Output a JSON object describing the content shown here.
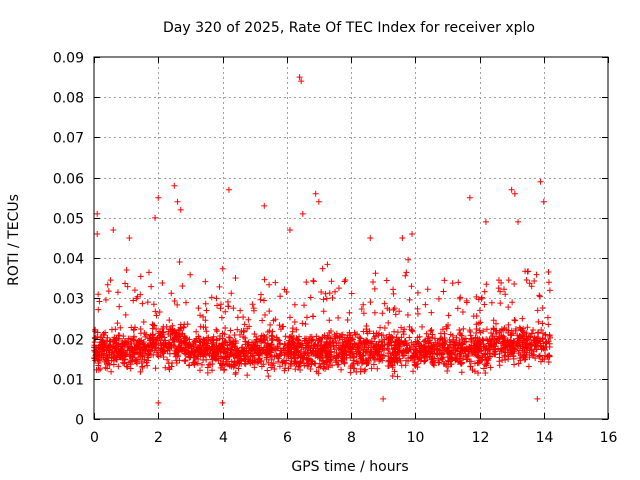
{
  "chart_data": {
    "type": "scatter",
    "title": "Day 320 of 2025, Rate Of TEC Index for receiver xplo",
    "xlabel": "GPS time / hours",
    "ylabel": "ROTI / TECUs",
    "xlim": [
      0,
      16
    ],
    "ylim": [
      0,
      0.09
    ],
    "xticks": [
      0,
      2,
      4,
      6,
      8,
      10,
      12,
      14,
      16
    ],
    "xtick_labels": [
      "0",
      "2",
      "4",
      "6",
      "8",
      "10",
      "12",
      "14",
      "16"
    ],
    "yticks": [
      0,
      0.01,
      0.02,
      0.03,
      0.04,
      0.05,
      0.06,
      0.07,
      0.08,
      0.09
    ],
    "ytick_labels": [
      "0",
      "0.01",
      "0.02",
      "0.03",
      "0.04",
      "0.05",
      "0.06",
      "0.07",
      "0.08",
      "0.09"
    ],
    "grid": true,
    "marker": "+",
    "color": "#ff0000",
    "series": [
      {
        "name": "ROTI",
        "x_range": [
          0,
          14.2
        ],
        "typical_range": [
          0.01,
          0.03
        ],
        "center_value": 0.017,
        "notable_points": [
          {
            "x": 0.1,
            "y": 0.051
          },
          {
            "x": 0.1,
            "y": 0.046
          },
          {
            "x": 0.6,
            "y": 0.047
          },
          {
            "x": 1.1,
            "y": 0.045
          },
          {
            "x": 1.9,
            "y": 0.05
          },
          {
            "x": 2.0,
            "y": 0.055
          },
          {
            "x": 2.0,
            "y": 0.004
          },
          {
            "x": 2.5,
            "y": 0.058
          },
          {
            "x": 2.6,
            "y": 0.054
          },
          {
            "x": 2.7,
            "y": 0.052
          },
          {
            "x": 4.2,
            "y": 0.057
          },
          {
            "x": 4.0,
            "y": 0.004
          },
          {
            "x": 5.3,
            "y": 0.053
          },
          {
            "x": 6.1,
            "y": 0.047
          },
          {
            "x": 6.4,
            "y": 0.085
          },
          {
            "x": 6.45,
            "y": 0.084
          },
          {
            "x": 6.5,
            "y": 0.051
          },
          {
            "x": 6.9,
            "y": 0.056
          },
          {
            "x": 7.0,
            "y": 0.054
          },
          {
            "x": 8.6,
            "y": 0.045
          },
          {
            "x": 9.0,
            "y": 0.005
          },
          {
            "x": 9.6,
            "y": 0.045
          },
          {
            "x": 9.9,
            "y": 0.046
          },
          {
            "x": 11.7,
            "y": 0.055
          },
          {
            "x": 12.2,
            "y": 0.049
          },
          {
            "x": 13.0,
            "y": 0.057
          },
          {
            "x": 13.1,
            "y": 0.056
          },
          {
            "x": 13.2,
            "y": 0.049
          },
          {
            "x": 13.8,
            "y": 0.005
          },
          {
            "x": 13.9,
            "y": 0.059
          },
          {
            "x": 14.0,
            "y": 0.054
          }
        ]
      }
    ]
  }
}
